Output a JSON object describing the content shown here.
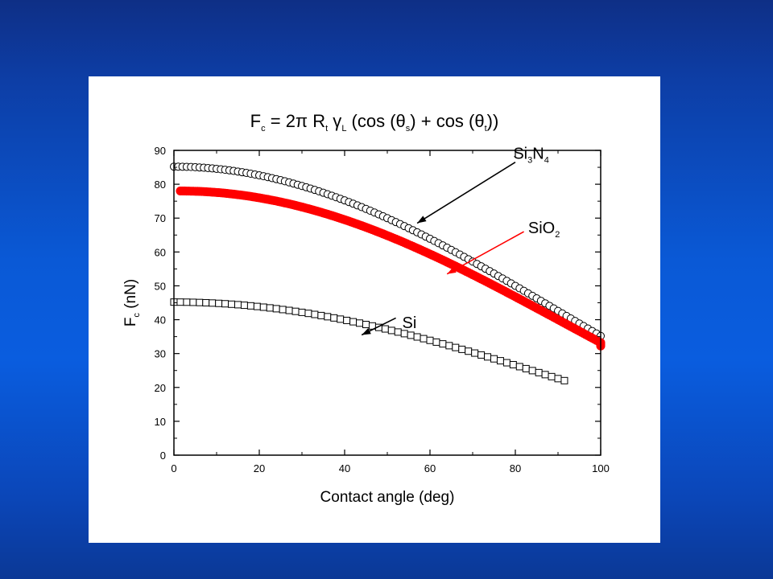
{
  "chart_data": {
    "type": "scatter",
    "title": {
      "parts": [
        {
          "text": "F",
          "sub": false
        },
        {
          "text": "c",
          "sub": true
        },
        {
          "text": " = 2π R",
          "sub": false
        },
        {
          "text": "t",
          "sub": true
        },
        {
          "text": " γ",
          "sub": false
        },
        {
          "text": "L",
          "sub": true
        },
        {
          "text": " (cos (θ",
          "sub": false
        },
        {
          "text": "s",
          "sub": true
        },
        {
          "text": ") + cos (θ",
          "sub": false
        },
        {
          "text": "t",
          "sub": true
        },
        {
          "text": "))",
          "sub": false
        }
      ]
    },
    "xlabel": "Contact angle (deg)",
    "ylabel": {
      "main": "F",
      "sub": "c",
      "rest": " (nN)"
    },
    "xlim": [
      0,
      100
    ],
    "ylim": [
      0,
      90
    ],
    "x_ticks": [
      0,
      20,
      40,
      60,
      80,
      100
    ],
    "y_ticks": [
      0,
      10,
      20,
      30,
      40,
      50,
      60,
      70,
      80,
      90
    ],
    "x_minor_step": 10,
    "y_minor_step": 5,
    "grid": false,
    "series": [
      {
        "marker": "circle",
        "color": "#000000",
        "fill": "#ffffff",
        "x_range": [
          0,
          100
        ],
        "x_step": 1,
        "amplitude": 42.6,
        "cos_offset_deg": 0
      },
      {
        "marker": "filled-circle",
        "color": "#ff0000",
        "fill": "#ff0000",
        "x_range": [
          0,
          100
        ],
        "x_step": 0.5,
        "amplitude": 39,
        "cos_offset_deg": 0,
        "x_shift": 1.5
      },
      {
        "marker": "square",
        "color": "#000000",
        "fill": "#ffffff",
        "x_range": [
          0,
          91.5
        ],
        "x_step": 1.5,
        "amplitude": 22.6,
        "cos_offset_deg": 0
      }
    ],
    "annotations": [
      {
        "label_parts": [
          {
            "text": "Si",
            "sub": false
          },
          {
            "text": "3",
            "sub": true
          },
          {
            "text": "N",
            "sub": false
          },
          {
            "text": "4",
            "sub": true
          }
        ],
        "color": "#000000",
        "arrow_from": [
          80,
          86.5
        ],
        "arrow_to": [
          57,
          68.5
        ],
        "label_at": [
          79.5,
          87.5
        ]
      },
      {
        "label_parts": [
          {
            "text": "SiO",
            "sub": false
          },
          {
            "text": "2",
            "sub": true
          }
        ],
        "color": "#ff0000",
        "arrow_from": [
          82,
          66
        ],
        "arrow_to": [
          64,
          53.5
        ],
        "label_at": [
          83,
          65.5
        ]
      },
      {
        "label_parts": [
          {
            "text": "Si",
            "sub": false
          }
        ],
        "color": "#000000",
        "arrow_from": [
          52,
          40.5
        ],
        "arrow_to": [
          44,
          35.5
        ],
        "label_at": [
          53.5,
          37.5
        ]
      }
    ]
  }
}
